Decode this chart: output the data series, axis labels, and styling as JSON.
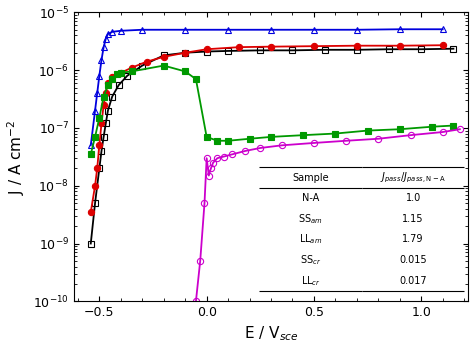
{
  "xlabel": "E / V$_{sce}$",
  "ylabel": "J / A cm$^{-2}$",
  "xlim": [
    -0.62,
    1.22
  ],
  "ylim_log": [
    -10,
    -5
  ],
  "N_A": {
    "color": "black",
    "marker": "s",
    "mfc": "none",
    "mec": "black",
    "x": [
      -0.54,
      -0.52,
      -0.5,
      -0.49,
      -0.48,
      -0.47,
      -0.46,
      -0.44,
      -0.41,
      -0.37,
      -0.3,
      -0.2,
      -0.1,
      0.0,
      0.1,
      0.25,
      0.4,
      0.55,
      0.7,
      0.85,
      1.0,
      1.15
    ],
    "y": [
      1e-09,
      5e-09,
      2e-08,
      4e-08,
      7e-08,
      1.2e-07,
      2e-07,
      3.5e-07,
      5.5e-07,
      8e-07,
      1.2e-06,
      1.8e-06,
      2e-06,
      2.1e-06,
      2.15e-06,
      2.2e-06,
      2.2e-06,
      2.25e-06,
      2.25e-06,
      2.3e-06,
      2.3e-06,
      2.35e-06
    ]
  },
  "SS_am": {
    "color": "#dd0000",
    "marker": "o",
    "mfc": "#dd0000",
    "mec": "#dd0000",
    "x": [
      -0.54,
      -0.52,
      -0.51,
      -0.5,
      -0.49,
      -0.48,
      -0.47,
      -0.46,
      -0.44,
      -0.4,
      -0.35,
      -0.28,
      -0.2,
      -0.1,
      0.0,
      0.15,
      0.3,
      0.5,
      0.7,
      0.9,
      1.1
    ],
    "y": [
      3.5e-09,
      1e-08,
      2e-08,
      5e-08,
      1.2e-07,
      2.5e-07,
      4e-07,
      6e-07,
      7.5e-07,
      9e-07,
      1.1e-06,
      1.4e-06,
      1.7e-06,
      2e-06,
      2.3e-06,
      2.5e-06,
      2.55e-06,
      2.6e-06,
      2.65e-06,
      2.65e-06,
      2.7e-06
    ]
  },
  "LL_am": {
    "color": "#0000dd",
    "marker": "^",
    "mfc": "none",
    "mec": "#0000dd",
    "x": [
      -0.54,
      -0.52,
      -0.51,
      -0.5,
      -0.49,
      -0.48,
      -0.47,
      -0.46,
      -0.44,
      -0.4,
      -0.3,
      -0.1,
      0.1,
      0.3,
      0.5,
      0.7,
      0.9,
      1.1
    ],
    "y": [
      5e-08,
      2e-07,
      4e-07,
      8e-07,
      1.5e-06,
      2.5e-06,
      3.5e-06,
      4.2e-06,
      4.6e-06,
      4.8e-06,
      5e-06,
      5e-06,
      5e-06,
      5e-06,
      5e-06,
      5e-06,
      5.1e-06,
      5.1e-06
    ]
  },
  "SS_cr": {
    "color": "#009900",
    "marker": "s",
    "mfc": "#009900",
    "mec": "#009900",
    "x": [
      -0.54,
      -0.52,
      -0.5,
      -0.48,
      -0.46,
      -0.44,
      -0.42,
      -0.4,
      -0.35,
      -0.2,
      -0.1,
      -0.05,
      0.0,
      0.05,
      0.1,
      0.2,
      0.3,
      0.45,
      0.6,
      0.75,
      0.9,
      1.05,
      1.15
    ],
    "y": [
      3.5e-08,
      7e-08,
      1.5e-07,
      3.5e-07,
      5.5e-07,
      7e-07,
      8.5e-07,
      9e-07,
      9.5e-07,
      1.2e-06,
      9.5e-07,
      7e-07,
      7e-08,
      6e-08,
      6e-08,
      6.5e-08,
      7e-08,
      7.5e-08,
      8e-08,
      9e-08,
      9.5e-08,
      1.05e-07,
      1.1e-07
    ]
  },
  "LL_cr": {
    "color": "#cc00cc",
    "marker": "o",
    "mfc": "none",
    "mec": "#cc00cc",
    "x": [
      -0.05,
      -0.03,
      -0.01,
      0.0,
      0.01,
      0.02,
      0.03,
      0.05,
      0.08,
      0.12,
      0.18,
      0.25,
      0.35,
      0.5,
      0.65,
      0.8,
      0.95,
      1.1,
      1.18
    ],
    "y": [
      1e-10,
      5e-10,
      5e-09,
      3e-08,
      1.5e-08,
      2e-08,
      2.5e-08,
      3e-08,
      3.2e-08,
      3.5e-08,
      4e-08,
      4.5e-08,
      5e-08,
      5.5e-08,
      6e-08,
      6.5e-08,
      7.5e-08,
      8.5e-08,
      9.5e-08
    ]
  },
  "table_rows": [
    [
      "N-A",
      "1.0"
    ],
    [
      "SS$_{am}$",
      "1.15"
    ],
    [
      "LL$_{am}$",
      "1.79"
    ],
    [
      "SS$_{cr}$",
      "0.015"
    ],
    [
      "LL$_{cr}$",
      "0.017"
    ]
  ],
  "table_col1": "Sample",
  "table_col2": "$J_{pass}$/$J_{pass,N\\textrm{-}A}$"
}
